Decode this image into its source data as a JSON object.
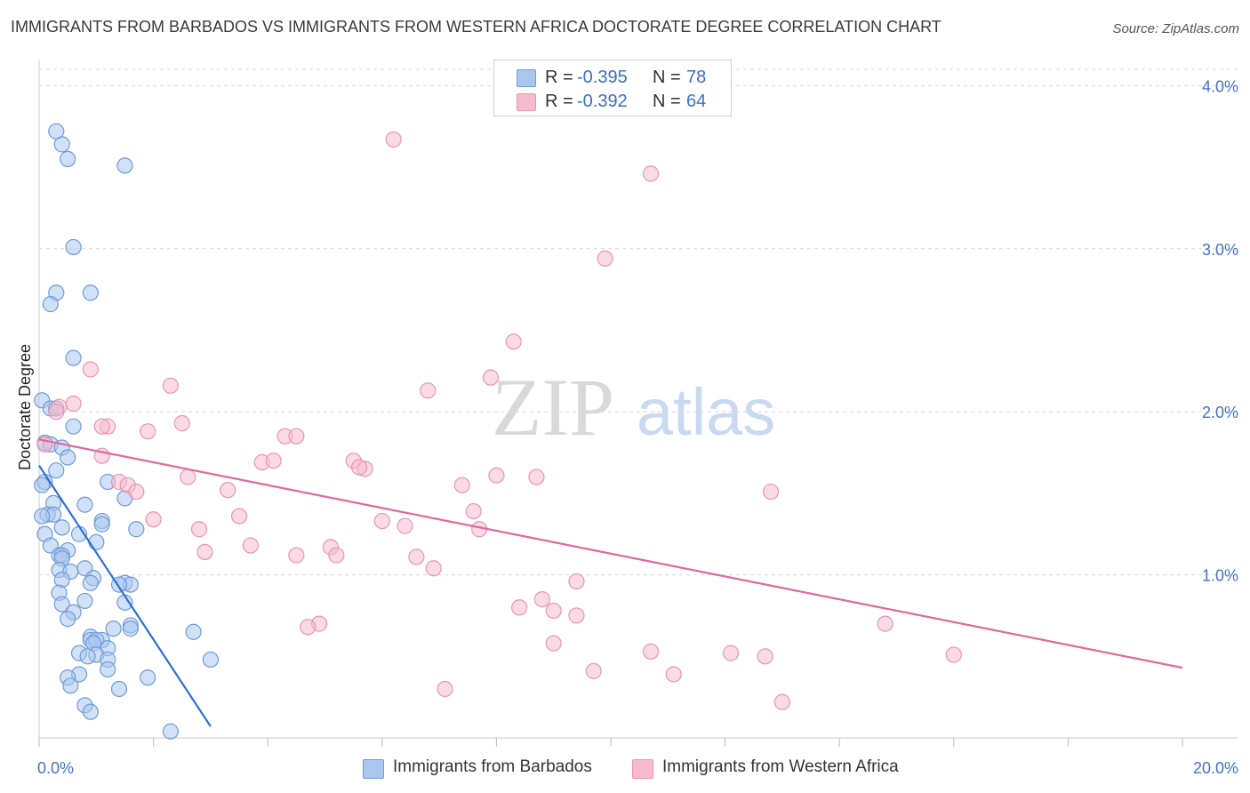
{
  "title": "IMMIGRANTS FROM BARBADOS VS IMMIGRANTS FROM WESTERN AFRICA DOCTORATE DEGREE CORRELATION CHART",
  "source": "Source: ZipAtlas.com",
  "watermark": {
    "zip": "ZIP",
    "atlas": "atlas"
  },
  "legend": [
    {
      "r_label": "R =",
      "r_value": "-0.395",
      "n_label": "N =",
      "n_value": "78"
    },
    {
      "r_label": "R =",
      "r_value": "-0.392",
      "n_label": "N =",
      "n_value": "64"
    }
  ],
  "colors": {
    "barbados_fill": "#a9c6ee",
    "barbados_stroke": "#6f9bd8",
    "barbados_line": "#2e6fd1",
    "wafrica_fill": "#f6bccd",
    "wafrica_stroke": "#e996b0",
    "wafrica_line": "#e0699a",
    "tick_text": "#4472c4",
    "grid": "#d8d8d8"
  },
  "chart_data": {
    "type": "scatter",
    "title": "IMMIGRANTS FROM BARBADOS VS IMMIGRANTS FROM WESTERN AFRICA DOCTORATE DEGREE CORRELATION CHART",
    "xlabel": "",
    "ylabel": "Doctorate Degree",
    "xlim": [
      0,
      20
    ],
    "ylim": [
      0,
      4.1
    ],
    "x_tick_labels": [
      "0.0%",
      "20.0%"
    ],
    "y_ticks": [
      1.0,
      2.0,
      3.0,
      4.0
    ],
    "y_tick_labels": [
      "1.0%",
      "2.0%",
      "3.0%",
      "4.0%"
    ],
    "grid": "horizontal-dashed",
    "legend_placement": "top-center",
    "series": [
      {
        "name": "Immigrants from Barbados",
        "trendline": [
          [
            0.0,
            1.67
          ],
          [
            3.0,
            0.07
          ]
        ],
        "points": [
          [
            0.3,
            3.72
          ],
          [
            0.4,
            3.64
          ],
          [
            0.5,
            3.55
          ],
          [
            1.5,
            3.51
          ],
          [
            0.6,
            3.01
          ],
          [
            0.3,
            2.73
          ],
          [
            0.9,
            2.73
          ],
          [
            0.2,
            2.66
          ],
          [
            0.6,
            2.33
          ],
          [
            0.05,
            2.07
          ],
          [
            0.2,
            2.02
          ],
          [
            0.3,
            2.02
          ],
          [
            0.6,
            1.91
          ],
          [
            0.1,
            1.81
          ],
          [
            0.2,
            1.8
          ],
          [
            0.4,
            1.78
          ],
          [
            0.5,
            1.72
          ],
          [
            0.3,
            1.64
          ],
          [
            0.1,
            1.57
          ],
          [
            0.05,
            1.55
          ],
          [
            1.2,
            1.57
          ],
          [
            1.5,
            1.47
          ],
          [
            0.25,
            1.44
          ],
          [
            0.8,
            1.43
          ],
          [
            0.15,
            1.37
          ],
          [
            0.25,
            1.37
          ],
          [
            0.05,
            1.36
          ],
          [
            1.1,
            1.33
          ],
          [
            1.1,
            1.31
          ],
          [
            0.4,
            1.29
          ],
          [
            1.7,
            1.28
          ],
          [
            0.1,
            1.25
          ],
          [
            0.7,
            1.25
          ],
          [
            1.0,
            1.2
          ],
          [
            0.2,
            1.18
          ],
          [
            0.5,
            1.15
          ],
          [
            0.35,
            1.12
          ],
          [
            0.4,
            1.12
          ],
          [
            0.4,
            1.1
          ],
          [
            0.8,
            1.04
          ],
          [
            0.35,
            1.03
          ],
          [
            0.55,
            1.02
          ],
          [
            0.95,
            0.98
          ],
          [
            0.4,
            0.97
          ],
          [
            0.9,
            0.95
          ],
          [
            1.5,
            0.95
          ],
          [
            1.6,
            0.94
          ],
          [
            1.4,
            0.94
          ],
          [
            0.35,
            0.89
          ],
          [
            0.8,
            0.84
          ],
          [
            1.5,
            0.83
          ],
          [
            0.4,
            0.82
          ],
          [
            0.6,
            0.77
          ],
          [
            0.5,
            0.73
          ],
          [
            1.6,
            0.69
          ],
          [
            1.6,
            0.67
          ],
          [
            1.3,
            0.67
          ],
          [
            2.7,
            0.65
          ],
          [
            0.9,
            0.62
          ],
          [
            1.1,
            0.6
          ],
          [
            0.9,
            0.6
          ],
          [
            1.0,
            0.6
          ],
          [
            0.95,
            0.58
          ],
          [
            1.2,
            0.55
          ],
          [
            0.7,
            0.52
          ],
          [
            1.0,
            0.51
          ],
          [
            0.85,
            0.5
          ],
          [
            1.2,
            0.48
          ],
          [
            3.0,
            0.48
          ],
          [
            1.2,
            0.42
          ],
          [
            0.7,
            0.39
          ],
          [
            0.5,
            0.37
          ],
          [
            1.9,
            0.37
          ],
          [
            0.55,
            0.32
          ],
          [
            1.4,
            0.3
          ],
          [
            0.8,
            0.2
          ],
          [
            0.9,
            0.16
          ],
          [
            2.3,
            0.04
          ]
        ]
      },
      {
        "name": "Immigrants from Western Africa",
        "trendline": [
          [
            0.0,
            1.83
          ],
          [
            20.0,
            0.43
          ]
        ],
        "points": [
          [
            6.2,
            3.67
          ],
          [
            10.7,
            3.46
          ],
          [
            9.9,
            2.94
          ],
          [
            8.3,
            2.43
          ],
          [
            0.9,
            2.26
          ],
          [
            7.9,
            2.21
          ],
          [
            6.8,
            2.13
          ],
          [
            2.3,
            2.16
          ],
          [
            0.35,
            2.03
          ],
          [
            0.6,
            2.05
          ],
          [
            0.3,
            2.0
          ],
          [
            2.5,
            1.93
          ],
          [
            1.2,
            1.91
          ],
          [
            1.1,
            1.91
          ],
          [
            1.9,
            1.88
          ],
          [
            0.1,
            1.8
          ],
          [
            4.3,
            1.85
          ],
          [
            4.5,
            1.85
          ],
          [
            5.5,
            1.7
          ],
          [
            5.7,
            1.65
          ],
          [
            5.6,
            1.66
          ],
          [
            1.1,
            1.73
          ],
          [
            3.9,
            1.69
          ],
          [
            4.1,
            1.7
          ],
          [
            8.0,
            1.61
          ],
          [
            8.7,
            1.6
          ],
          [
            2.6,
            1.6
          ],
          [
            1.4,
            1.57
          ],
          [
            1.55,
            1.55
          ],
          [
            1.7,
            1.51
          ],
          [
            3.3,
            1.52
          ],
          [
            7.4,
            1.55
          ],
          [
            12.8,
            1.51
          ],
          [
            7.6,
            1.39
          ],
          [
            3.5,
            1.36
          ],
          [
            2.0,
            1.34
          ],
          [
            6.0,
            1.33
          ],
          [
            6.4,
            1.3
          ],
          [
            7.7,
            1.28
          ],
          [
            2.8,
            1.28
          ],
          [
            3.7,
            1.18
          ],
          [
            5.1,
            1.17
          ],
          [
            2.9,
            1.14
          ],
          [
            4.5,
            1.12
          ],
          [
            5.2,
            1.12
          ],
          [
            6.6,
            1.11
          ],
          [
            6.9,
            1.04
          ],
          [
            9.4,
            0.96
          ],
          [
            8.8,
            0.85
          ],
          [
            8.4,
            0.8
          ],
          [
            9.0,
            0.78
          ],
          [
            9.4,
            0.75
          ],
          [
            14.8,
            0.7
          ],
          [
            4.9,
            0.7
          ],
          [
            4.7,
            0.68
          ],
          [
            9.0,
            0.58
          ],
          [
            10.7,
            0.53
          ],
          [
            12.1,
            0.52
          ],
          [
            12.7,
            0.5
          ],
          [
            16.0,
            0.51
          ],
          [
            9.7,
            0.41
          ],
          [
            11.1,
            0.39
          ],
          [
            7.1,
            0.3
          ],
          [
            13.0,
            0.22
          ]
        ]
      }
    ]
  }
}
